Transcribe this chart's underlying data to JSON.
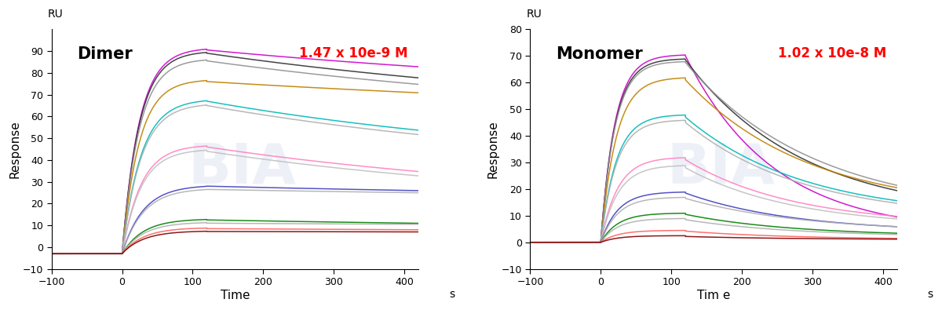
{
  "dimer": {
    "title": "Dimer",
    "kd_label": "1.47 x 10e-9 M",
    "xlabel": "Time",
    "xlabel_suffix": "s",
    "ylabel": "Response",
    "ru_label": "RU",
    "xlim": [
      -100,
      420
    ],
    "ylim": [
      -10,
      100
    ],
    "xticks": [
      -100,
      0,
      100,
      200,
      300,
      400
    ],
    "yticks": [
      -10,
      0,
      10,
      20,
      30,
      40,
      50,
      60,
      70,
      80,
      90
    ],
    "baseline_end": 0,
    "assoc_end": 120,
    "dissoc_end": 410,
    "baseline_value": -3,
    "curves": [
      {
        "color": "#cc00cc",
        "peak": 91.5,
        "plateau": 90.5,
        "end_dissoc": 83.0,
        "ka": 5.0,
        "kd": 0.0012
      },
      {
        "color": "#303030",
        "peak": 90.0,
        "plateau": 89.0,
        "end_dissoc": 78.0,
        "ka": 5.0,
        "kd": 0.0015
      },
      {
        "color": "#909090",
        "peak": 86.5,
        "plateau": 85.5,
        "end_dissoc": 75.0,
        "ka": 5.0,
        "kd": 0.0015
      },
      {
        "color": "#c08000",
        "peak": 77.0,
        "plateau": 76.0,
        "end_dissoc": 71.0,
        "ka": 5.0,
        "kd": 0.001
      },
      {
        "color": "#00b8b8",
        "peak": 68.0,
        "plateau": 67.0,
        "end_dissoc": 54.0,
        "ka": 4.5,
        "kd": 0.0018
      },
      {
        "color": "#b0b0b0",
        "peak": 66.0,
        "plateau": 65.0,
        "end_dissoc": 52.0,
        "ka": 4.5,
        "kd": 0.0018
      },
      {
        "color": "#ff80c0",
        "peak": 47.0,
        "plateau": 46.0,
        "end_dissoc": 35.0,
        "ka": 4.5,
        "kd": 0.0018
      },
      {
        "color": "#c0c0c0",
        "peak": 45.0,
        "plateau": 44.0,
        "end_dissoc": 33.0,
        "ka": 4.5,
        "kd": 0.0018
      },
      {
        "color": "#4040c0",
        "peak": 28.5,
        "plateau": 28.0,
        "end_dissoc": 26.0,
        "ka": 4.0,
        "kd": 0.001
      },
      {
        "color": "#b0b0b0",
        "peak": 27.0,
        "plateau": 26.5,
        "end_dissoc": 25.0,
        "ka": 4.0,
        "kd": 0.001
      },
      {
        "color": "#008000",
        "peak": 13.0,
        "plateau": 12.5,
        "end_dissoc": 11.0,
        "ka": 4.0,
        "kd": 0.001
      },
      {
        "color": "#b0b0b0",
        "peak": 11.5,
        "plateau": 11.0,
        "end_dissoc": 10.5,
        "ka": 4.0,
        "kd": 0.001
      },
      {
        "color": "#ff6060",
        "peak": 9.0,
        "plateau": 8.5,
        "end_dissoc": 8.0,
        "ka": 4.0,
        "kd": 0.0008
      },
      {
        "color": "#800000",
        "peak": 7.5,
        "plateau": 7.2,
        "end_dissoc": 7.0,
        "ka": 4.0,
        "kd": 0.0008
      }
    ]
  },
  "monomer": {
    "title": "Monomer",
    "kd_label": "1.02 x 10e-8 M",
    "xlabel": "Tim e",
    "xlabel_suffix": "s",
    "ylabel": "Response",
    "ru_label": "RU",
    "xlim": [
      -100,
      420
    ],
    "ylim": [
      -10,
      80
    ],
    "xticks": [
      -100,
      0,
      100,
      200,
      300,
      400
    ],
    "yticks": [
      -10,
      0,
      10,
      20,
      30,
      40,
      50,
      60,
      70,
      80
    ],
    "baseline_end": 0,
    "assoc_end": 120,
    "dissoc_end": 410,
    "baseline_value": 0,
    "curves": [
      {
        "color": "#cc00cc",
        "peak": 70.5,
        "plateau": 70.0,
        "end_dissoc": 10.0,
        "ka": 6.0,
        "kd": 0.008
      },
      {
        "color": "#303030",
        "peak": 69.0,
        "plateau": 68.5,
        "end_dissoc": 20.0,
        "ka": 6.0,
        "kd": 0.006
      },
      {
        "color": "#909090",
        "peak": 68.0,
        "plateau": 67.5,
        "end_dissoc": 22.0,
        "ka": 6.0,
        "kd": 0.0055
      },
      {
        "color": "#c08000",
        "peak": 62.0,
        "plateau": 61.0,
        "end_dissoc": 21.0,
        "ka": 5.5,
        "kd": 0.0058
      },
      {
        "color": "#00b8b8",
        "peak": 48.0,
        "plateau": 47.0,
        "end_dissoc": 16.0,
        "ka": 5.5,
        "kd": 0.006
      },
      {
        "color": "#b0b0b0",
        "peak": 46.0,
        "plateau": 45.0,
        "end_dissoc": 15.0,
        "ka": 5.5,
        "kd": 0.006
      },
      {
        "color": "#ff80c0",
        "peak": 32.0,
        "plateau": 31.0,
        "end_dissoc": 10.0,
        "ka": 5.0,
        "kd": 0.0065
      },
      {
        "color": "#c0c0c0",
        "peak": 29.0,
        "plateau": 28.0,
        "end_dissoc": 9.0,
        "ka": 5.0,
        "kd": 0.0065
      },
      {
        "color": "#4040c0",
        "peak": 19.0,
        "plateau": 18.5,
        "end_dissoc": 6.0,
        "ka": 5.0,
        "kd": 0.0065
      },
      {
        "color": "#b0b0b0",
        "peak": 17.0,
        "plateau": 16.5,
        "end_dissoc": 6.0,
        "ka": 5.0,
        "kd": 0.006
      },
      {
        "color": "#008000",
        "peak": 11.0,
        "plateau": 10.5,
        "end_dissoc": 3.5,
        "ka": 5.0,
        "kd": 0.0065
      },
      {
        "color": "#b0b0b0",
        "peak": 9.0,
        "plateau": 8.5,
        "end_dissoc": 3.0,
        "ka": 5.0,
        "kd": 0.0065
      },
      {
        "color": "#ff6060",
        "peak": 4.5,
        "plateau": 4.2,
        "end_dissoc": 1.5,
        "ka": 5.0,
        "kd": 0.0065
      },
      {
        "color": "#800000",
        "peak": 2.5,
        "plateau": 2.2,
        "end_dissoc": 1.2,
        "ka": 5.0,
        "kd": 0.0065
      }
    ]
  }
}
